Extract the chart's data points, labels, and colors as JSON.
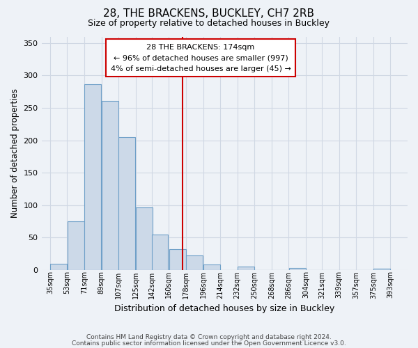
{
  "title": "28, THE BRACKENS, BUCKLEY, CH7 2RB",
  "subtitle": "Size of property relative to detached houses in Buckley",
  "xlabel": "Distribution of detached houses by size in Buckley",
  "ylabel": "Number of detached properties",
  "bar_left_edges": [
    35,
    53,
    71,
    89,
    107,
    125,
    142,
    160,
    178,
    196,
    214,
    232,
    250,
    268,
    286,
    304,
    321,
    339,
    357,
    375
  ],
  "bar_heights": [
    10,
    75,
    287,
    261,
    205,
    97,
    55,
    32,
    22,
    9,
    0,
    5,
    0,
    0,
    3,
    0,
    0,
    0,
    0,
    2
  ],
  "bar_widths": [
    18,
    18,
    18,
    18,
    18,
    18,
    17,
    18,
    18,
    18,
    18,
    18,
    18,
    18,
    18,
    17,
    18,
    18,
    18,
    18
  ],
  "bar_color": "#ccd9e8",
  "bar_edge_color": "#6fa0c8",
  "vline_color": "#cc0000",
  "vline_x": 174,
  "annotation_title": "28 THE BRACKENS: 174sqm",
  "annotation_line1": "← 96% of detached houses are smaller (997)",
  "annotation_line2": "4% of semi-detached houses are larger (45) →",
  "annotation_box_facecolor": "#ffffff",
  "annotation_box_edgecolor": "#cc0000",
  "ylim": [
    0,
    360
  ],
  "yticks": [
    0,
    50,
    100,
    150,
    200,
    250,
    300,
    350
  ],
  "xtick_labels": [
    "35sqm",
    "53sqm",
    "71sqm",
    "89sqm",
    "107sqm",
    "125sqm",
    "142sqm",
    "160sqm",
    "178sqm",
    "196sqm",
    "214sqm",
    "232sqm",
    "250sqm",
    "268sqm",
    "286sqm",
    "304sqm",
    "321sqm",
    "339sqm",
    "357sqm",
    "375sqm",
    "393sqm"
  ],
  "xtick_positions": [
    35,
    53,
    71,
    89,
    107,
    125,
    142,
    160,
    178,
    196,
    214,
    232,
    250,
    268,
    286,
    304,
    321,
    339,
    357,
    375,
    393
  ],
  "grid_color": "#d0d8e4",
  "background_color": "#eef2f7",
  "footer_line1": "Contains HM Land Registry data © Crown copyright and database right 2024.",
  "footer_line2": "Contains public sector information licensed under the Open Government Licence v3.0."
}
